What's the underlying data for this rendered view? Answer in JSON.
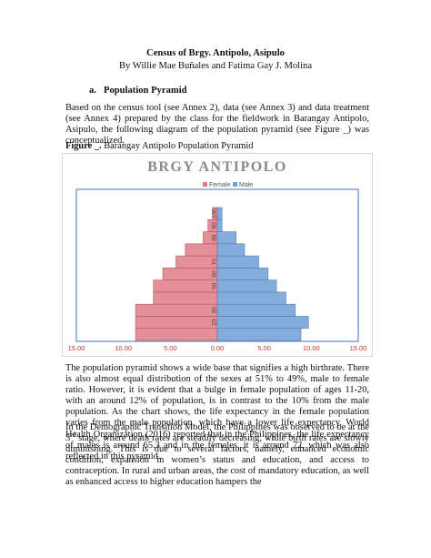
{
  "document": {
    "title": "Census of Brgy. Antipolo, Asipulo",
    "authors": "By Willie Mae Buñales and Fatima Gay J. Molina",
    "section_label": "a.",
    "section_title": "Population Pyramid",
    "paragraph1": "Based on the census tool (see Annex 2), data (see Annex 3) and data treatment (see Annex 4) prepared by the class for the fieldwork in Barangay Antipolo, Asipulo, the following diagram of the population pyramid (see Figure _) was conceptualized.",
    "figure_label": "Figure _.",
    "figure_caption": " Barangay Antipolo Population Pyramid",
    "paragraph2": "The population pyramid shows a wide base that signifies a high birthrate. There is also almost equal distribution of the sexes at 51% to 49%, male to female ratio. However, it is evident that a bulge in female population of ages 11-20, with an around 12% of population, is in contrast to the 10% from the male population. As the chart shows, the life expectancy in the female population varies from the male population, which have a lower life expectancy. World Health Organization (2016) reported that in the Philippines, the life expectancy of males is around 65.3 and in the females, it is around 72, which was also reflected in this pyramid.",
    "paragraph3_before_sup": "In the Demographic Transition Model, the Philippines was observed to be at the 3",
    "paragraph3_sup": "rd",
    "paragraph3_after_sup": " stage, where death rates are steadily decreasing, while birth rates are slowly diminishing. This is due to several factors, namely, enhanced economic condition, expansion in women’s status and education, and access to contraception. In rural and urban areas, the cost of mandatory education, as well as enhanced access to higher education hampers the"
  },
  "chart_data": {
    "type": "bar",
    "orientation": "horizontal",
    "title": "BRGY ANTIPOLO",
    "legend_position": "top",
    "series": [
      {
        "name": "Female",
        "color": "#e07b86",
        "values": [
          8.7,
          8.7,
          8.7,
          6.8,
          6.8,
          5.8,
          4.4,
          3.4,
          1.5,
          1.0,
          0.5
        ]
      },
      {
        "name": "Male",
        "color": "#6f9fd8",
        "values": [
          8.9,
          9.7,
          8.3,
          7.3,
          6.3,
          5.4,
          4.4,
          2.9,
          2.0,
          0.5,
          0.5
        ]
      }
    ],
    "category_labels": [
      {
        "index": 1,
        "text": "20"
      },
      {
        "index": 2,
        "text": "30"
      },
      {
        "index": 4,
        "text": "50"
      },
      {
        "index": 5,
        "text": "60"
      },
      {
        "index": 6,
        "text": "70"
      },
      {
        "index": 8,
        "text": "80"
      },
      {
        "index": 9,
        "text": "90"
      },
      {
        "index": 10,
        "text": "100"
      }
    ],
    "x_ticks": [
      -15,
      -10,
      -5,
      0,
      5,
      10,
      15
    ],
    "x_tick_labels": [
      "15.00",
      "10.00",
      "5.00",
      "0.00",
      "5.00",
      "10.00",
      "15.00"
    ],
    "xlim": [
      -15,
      15
    ],
    "grid": false,
    "colors": {
      "title": "#8a8a8a",
      "axis": "#4472c4",
      "tick": "#c0392b",
      "frame": "#cfd8e3"
    }
  }
}
